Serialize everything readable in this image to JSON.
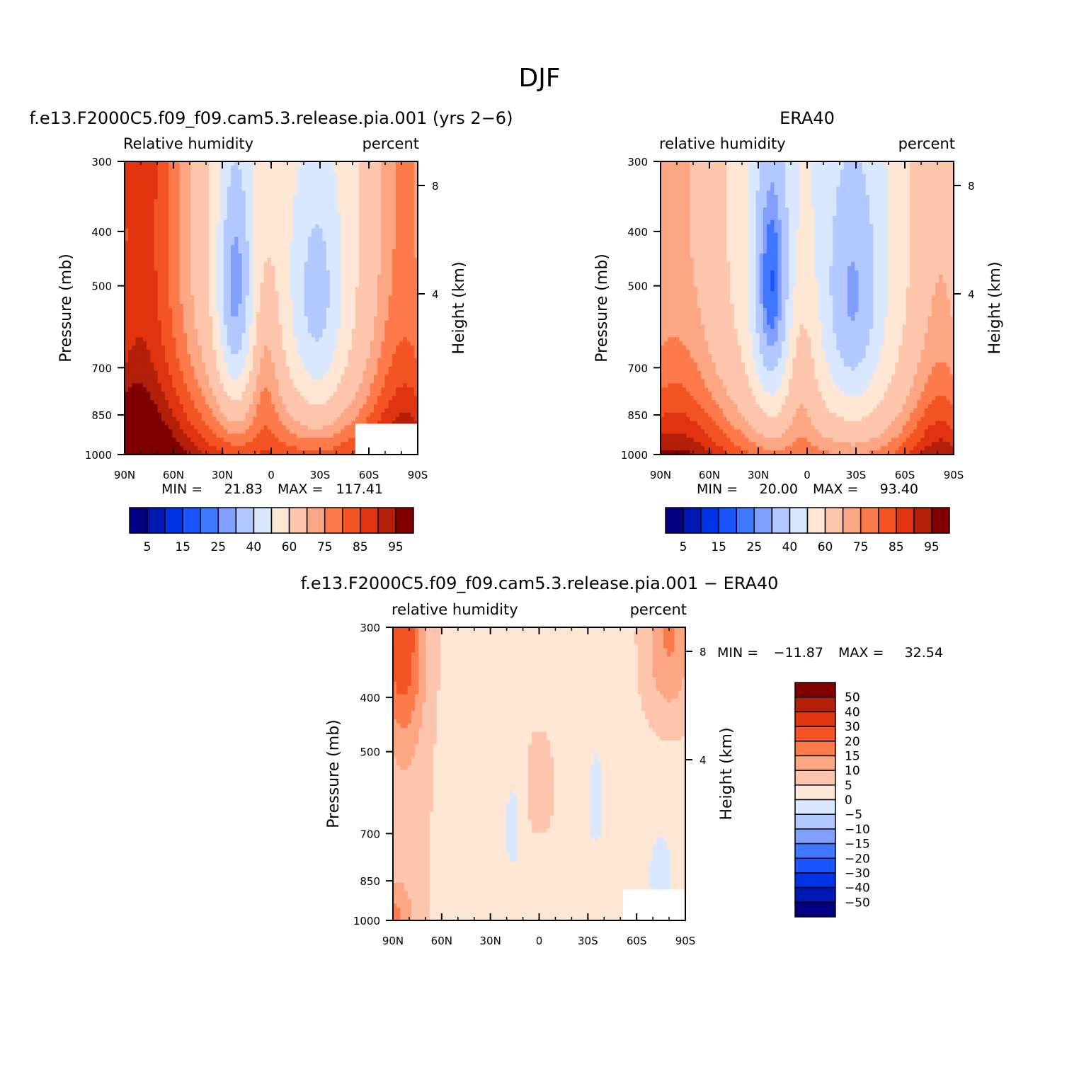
{
  "figure": {
    "season": "DJF"
  },
  "chart_data": [
    {
      "type": "heatmap",
      "title": "f.e13.F2000C5.f09_f09.cam5.3.release.pia.001 (yrs 2−6)",
      "left_label": "Relative humidity",
      "right_label": "percent",
      "xlabel": "",
      "ylabel": "Pressure (mb)",
      "ylabel_right": "Height (km)",
      "x_ticks": [
        "90N",
        "60N",
        "30N",
        "0",
        "30S",
        "60S",
        "90S"
      ],
      "y_ticks": [
        "300",
        "400",
        "500",
        "700",
        "850",
        "1000"
      ],
      "y_right_ticks": [
        "8",
        "4"
      ],
      "min_label": "MIN =",
      "min_value": "21.83",
      "max_label": "MAX =",
      "max_value": "117.41",
      "levels": [
        "5",
        "15",
        "25",
        "40",
        "60",
        "75",
        "85",
        "95"
      ],
      "field": "model",
      "colors": [
        "#000080",
        "#0019b3",
        "#0033e6",
        "#1a55ff",
        "#4077ff",
        "#809fff",
        "#b3c8ff",
        "#d9e8ff",
        "#fee6d4",
        "#fdc5ac",
        "#fca684",
        "#fd7a4a",
        "#f45323",
        "#e03410",
        "#b31f08",
        "#800000"
      ]
    },
    {
      "type": "heatmap",
      "title": "ERA40",
      "left_label": "relative humidity",
      "right_label": "percent",
      "xlabel": "",
      "ylabel": "Pressure (mb)",
      "ylabel_right": "Height (km)",
      "x_ticks": [
        "90N",
        "60N",
        "30N",
        "0",
        "30S",
        "60S",
        "90S"
      ],
      "y_ticks": [
        "300",
        "400",
        "500",
        "700",
        "850",
        "1000"
      ],
      "y_right_ticks": [
        "8",
        "4"
      ],
      "min_label": "MIN =",
      "min_value": "20.00",
      "max_label": "MAX =",
      "max_value": "93.40",
      "levels": [
        "5",
        "15",
        "25",
        "40",
        "60",
        "75",
        "85",
        "95"
      ],
      "field": "obs",
      "colors": [
        "#000080",
        "#0019b3",
        "#0033e6",
        "#1a55ff",
        "#4077ff",
        "#809fff",
        "#b3c8ff",
        "#d9e8ff",
        "#fee6d4",
        "#fdc5ac",
        "#fca684",
        "#fd7a4a",
        "#f45323",
        "#e03410",
        "#b31f08",
        "#800000"
      ]
    },
    {
      "type": "heatmap",
      "title": "f.e13.F2000C5.f09_f09.cam5.3.release.pia.001 − ERA40",
      "left_label": "relative humidity",
      "right_label": "percent",
      "xlabel": "",
      "ylabel": "Pressure (mb)",
      "ylabel_right": "Height (km)",
      "x_ticks": [
        "90N",
        "60N",
        "30N",
        "0",
        "30S",
        "60S",
        "90S"
      ],
      "y_ticks": [
        "300",
        "400",
        "500",
        "700",
        "850",
        "1000"
      ],
      "y_right_ticks": [
        "8",
        "4"
      ],
      "min_label": "MIN =",
      "min_value": "−11.87",
      "max_label": "MAX =",
      "max_value": "32.54",
      "levels": [
        "50",
        "40",
        "30",
        "20",
        "15",
        "10",
        "5",
        "0",
        "−5",
        "−10",
        "−15",
        "−20",
        "−30",
        "−40",
        "−50"
      ],
      "field": "diff",
      "colors": [
        "#800000",
        "#b31f08",
        "#e03410",
        "#f45323",
        "#fd7a4a",
        "#fca684",
        "#fdc5ac",
        "#fee6d4",
        "#d9e8ff",
        "#b3c8ff",
        "#809fff",
        "#4077ff",
        "#1a55ff",
        "#0033e6",
        "#0019b3",
        "#000080"
      ]
    }
  ]
}
